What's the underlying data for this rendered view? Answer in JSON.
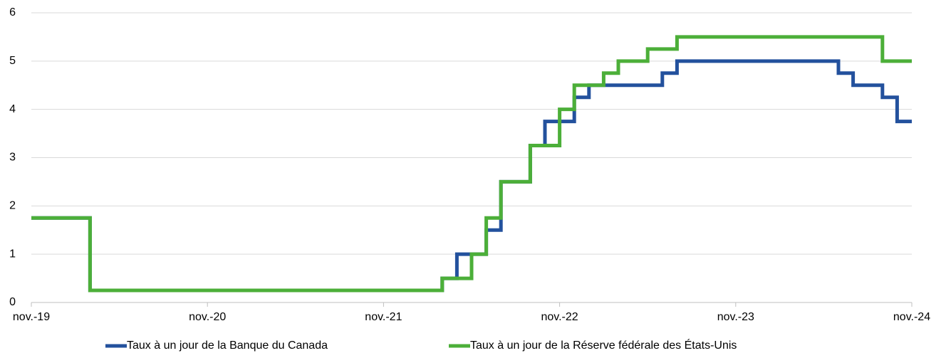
{
  "chart_data": {
    "type": "line",
    "step": true,
    "x": [
      "2019-11",
      "2019-12",
      "2020-01",
      "2020-02",
      "2020-03",
      "2020-04",
      "2020-05",
      "2020-06",
      "2020-07",
      "2020-08",
      "2020-09",
      "2020-10",
      "2020-11",
      "2020-12",
      "2021-01",
      "2021-02",
      "2021-03",
      "2021-04",
      "2021-05",
      "2021-06",
      "2021-07",
      "2021-08",
      "2021-09",
      "2021-10",
      "2021-11",
      "2021-12",
      "2022-01",
      "2022-02",
      "2022-03",
      "2022-04",
      "2022-05",
      "2022-06",
      "2022-07",
      "2022-08",
      "2022-09",
      "2022-10",
      "2022-11",
      "2022-12",
      "2023-01",
      "2023-02",
      "2023-03",
      "2023-04",
      "2023-05",
      "2023-06",
      "2023-07",
      "2023-08",
      "2023-09",
      "2023-10",
      "2023-11",
      "2023-12",
      "2024-01",
      "2024-02",
      "2024-03",
      "2024-04",
      "2024-05",
      "2024-06",
      "2024-07",
      "2024-08",
      "2024-09",
      "2024-10",
      "2024-11"
    ],
    "series": [
      {
        "name": "Taux à un jour de la Banque du Canada",
        "color": "#23519d",
        "values": [
          1.75,
          1.75,
          1.75,
          1.75,
          0.25,
          0.25,
          0.25,
          0.25,
          0.25,
          0.25,
          0.25,
          0.25,
          0.25,
          0.25,
          0.25,
          0.25,
          0.25,
          0.25,
          0.25,
          0.25,
          0.25,
          0.25,
          0.25,
          0.25,
          0.25,
          0.25,
          0.25,
          0.25,
          0.5,
          1.0,
          1.0,
          1.5,
          2.5,
          2.5,
          3.25,
          3.75,
          3.75,
          4.25,
          4.5,
          4.5,
          4.5,
          4.5,
          4.5,
          4.75,
          5.0,
          5.0,
          5.0,
          5.0,
          5.0,
          5.0,
          5.0,
          5.0,
          5.0,
          5.0,
          5.0,
          4.75,
          4.5,
          4.5,
          4.25,
          3.75,
          3.75
        ]
      },
      {
        "name": "Taux à un jour de la Réserve fédérale des États-Unis",
        "color": "#4caf39",
        "values": [
          1.75,
          1.75,
          1.75,
          1.75,
          0.25,
          0.25,
          0.25,
          0.25,
          0.25,
          0.25,
          0.25,
          0.25,
          0.25,
          0.25,
          0.25,
          0.25,
          0.25,
          0.25,
          0.25,
          0.25,
          0.25,
          0.25,
          0.25,
          0.25,
          0.25,
          0.25,
          0.25,
          0.25,
          0.5,
          0.5,
          1.0,
          1.75,
          2.5,
          2.5,
          3.25,
          3.25,
          4.0,
          4.5,
          4.5,
          4.75,
          5.0,
          5.0,
          5.25,
          5.25,
          5.5,
          5.5,
          5.5,
          5.5,
          5.5,
          5.5,
          5.5,
          5.5,
          5.5,
          5.5,
          5.5,
          5.5,
          5.5,
          5.5,
          5.0,
          5.0,
          5.0
        ]
      }
    ],
    "xlim": [
      "2019-11",
      "2024-11"
    ],
    "xticks": [
      {
        "value": "2019-11",
        "label": "nov.-19"
      },
      {
        "value": "2020-11",
        "label": "nov.-20"
      },
      {
        "value": "2021-11",
        "label": "nov.-21"
      },
      {
        "value": "2022-11",
        "label": "nov.-22"
      },
      {
        "value": "2023-11",
        "label": "nov.-23"
      },
      {
        "value": "2024-11",
        "label": "nov.-24"
      }
    ],
    "ylim": [
      0,
      6
    ],
    "yticks": [
      0,
      1,
      2,
      3,
      4,
      5,
      6
    ],
    "grid": true,
    "legend": "bottom"
  }
}
